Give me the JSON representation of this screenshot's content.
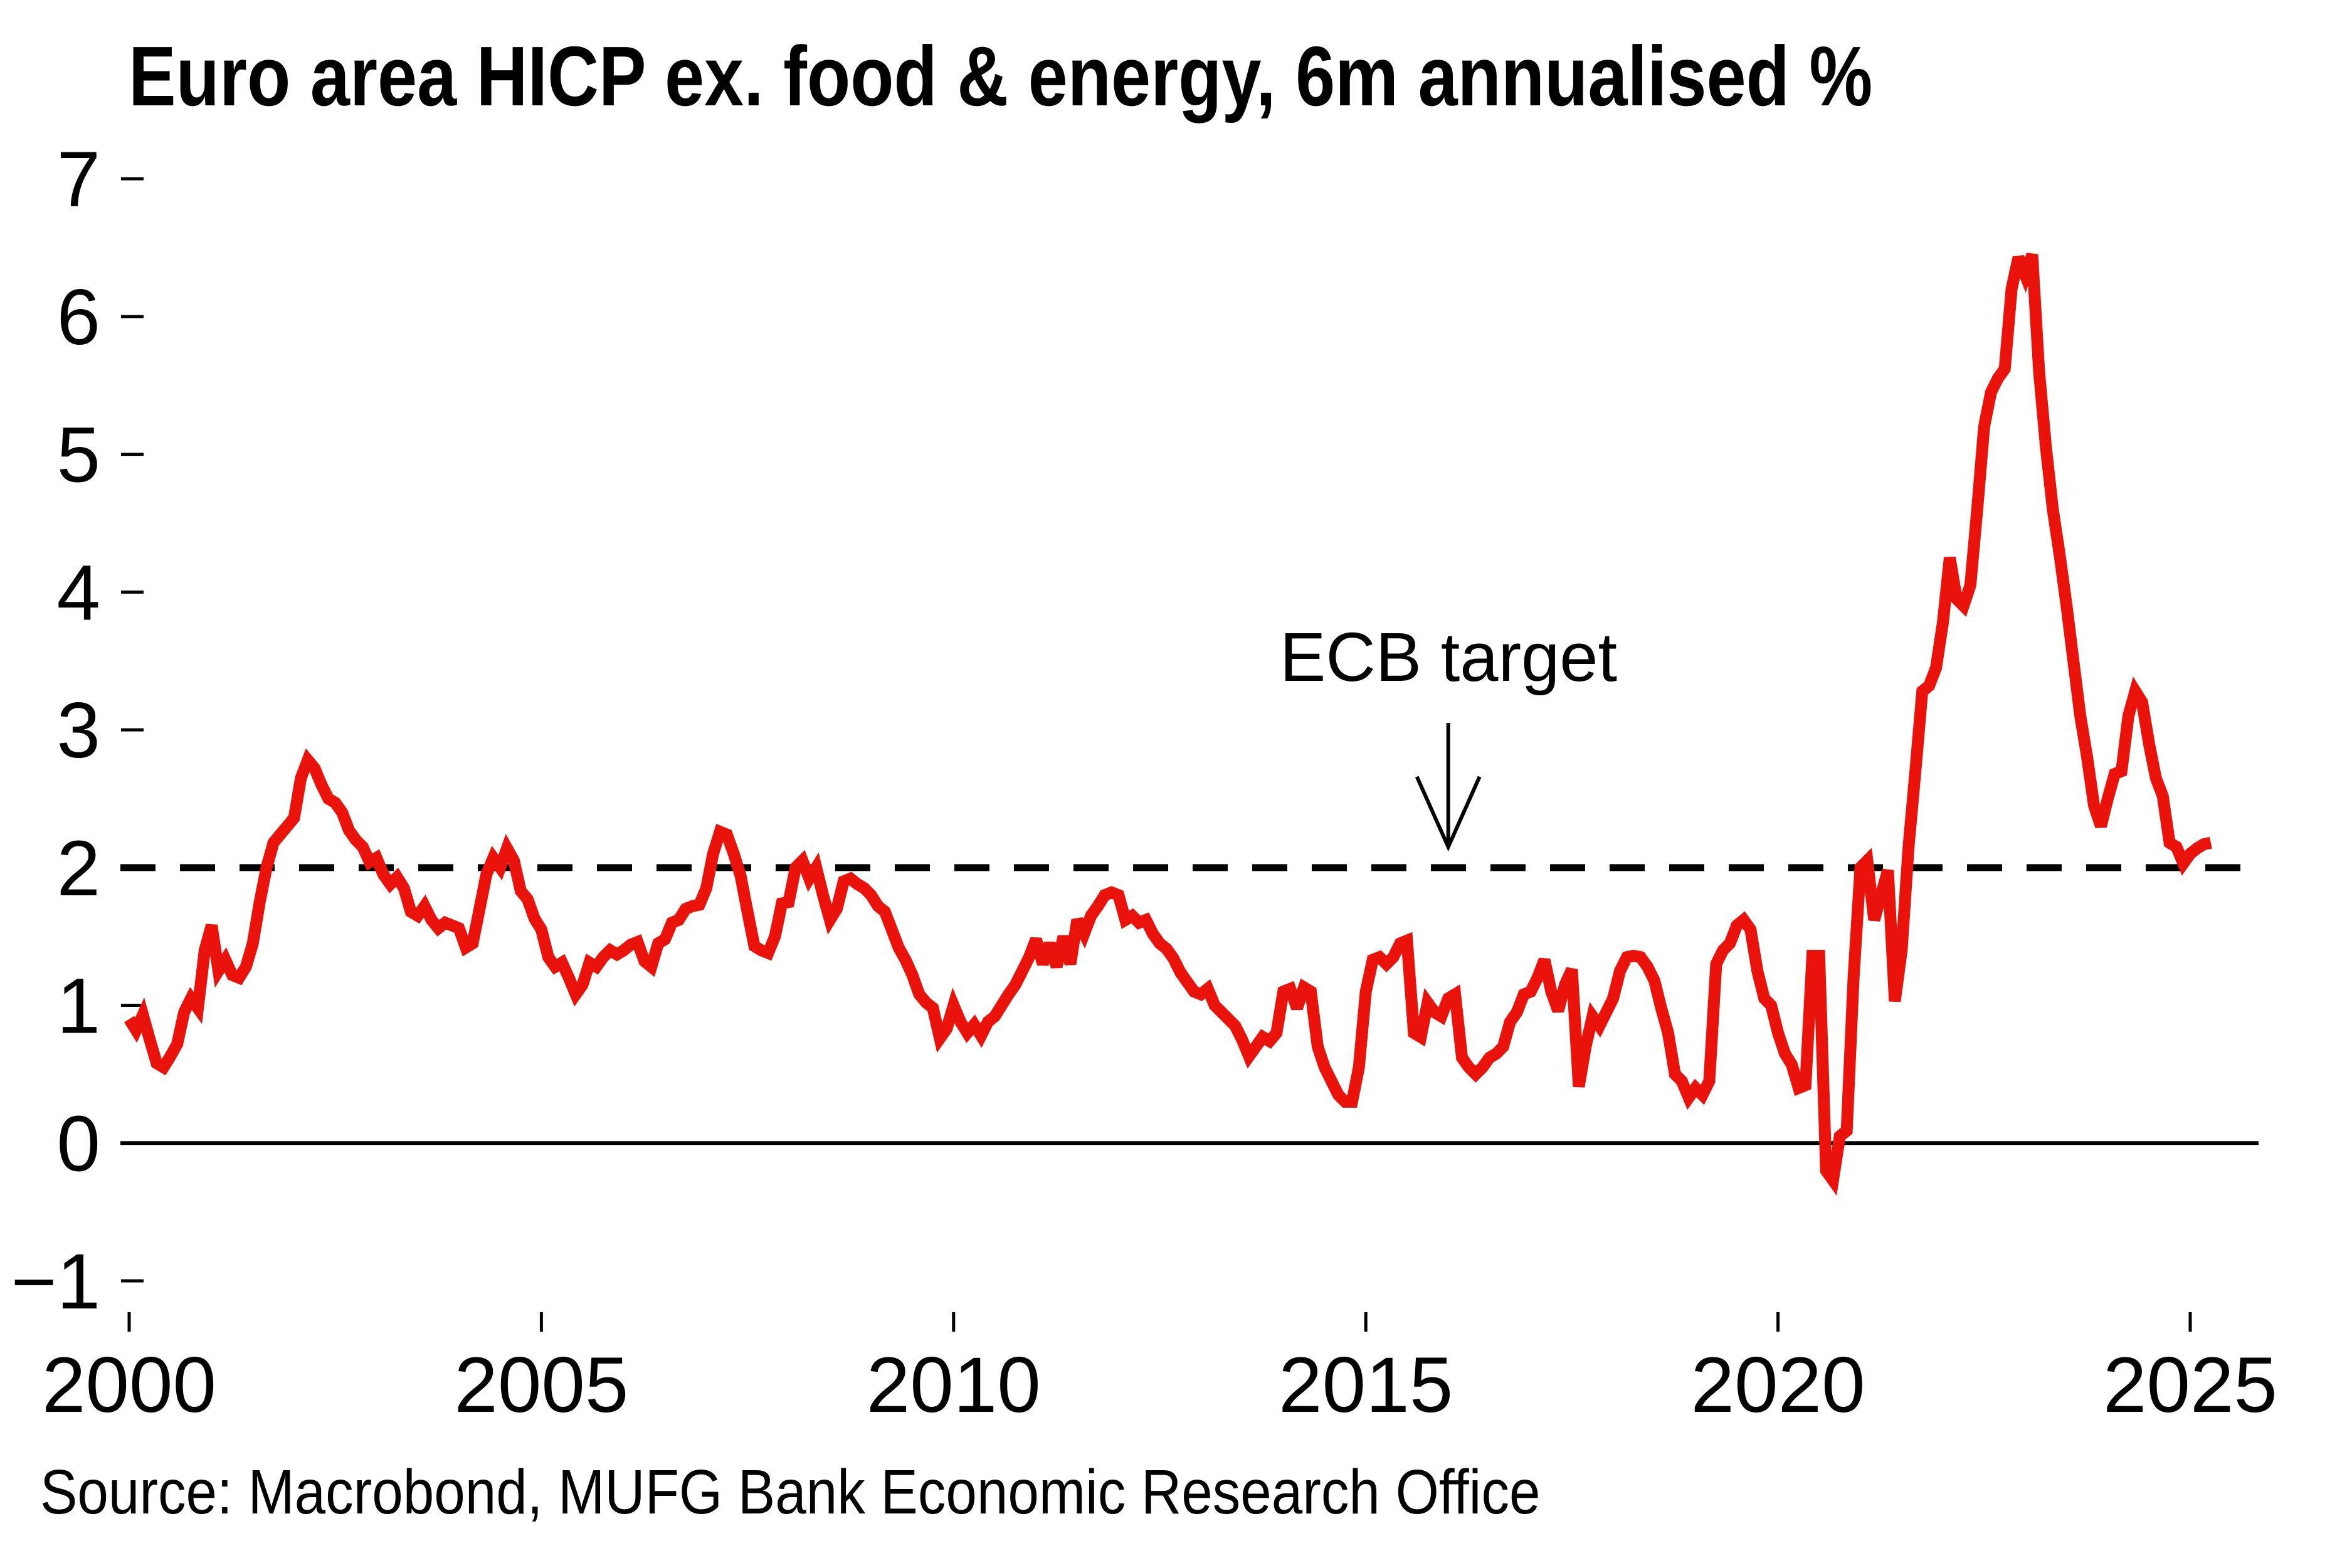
{
  "chart_data": {
    "type": "line",
    "title": "Euro area HICP ex. food & energy, 6m annualised %",
    "source": "Source: Macrobond, MUFG Bank Economic Research Office",
    "xlabel": "",
    "ylabel": "",
    "ylim": [
      -1,
      7
    ],
    "xlim": [
      2000,
      2025.9
    ],
    "grid": false,
    "legend_position": "none",
    "y_ticks": [
      "7",
      "6",
      "5",
      "4",
      "3",
      "2",
      "1",
      "0",
      "−1"
    ],
    "y_tick_values": [
      7,
      6,
      5,
      4,
      3,
      2,
      1,
      0,
      -1
    ],
    "x_ticks": [
      "2000",
      "2005",
      "2010",
      "2015",
      "2020",
      "2025"
    ],
    "x_tick_values": [
      2000,
      2005,
      2010,
      2015,
      2020,
      2025
    ],
    "annotation": {
      "text": "ECB target",
      "x": 2016.0,
      "arrow_from_value": 3.05,
      "arrow_to_value": 2.15
    },
    "target_line": {
      "value": 2,
      "style": "dashed",
      "color": "#000000"
    },
    "axis_color": "#000000",
    "series": [
      {
        "name": "Euro area HICP ex. food & energy, 6m annualised %",
        "color": "#e9130b",
        "start_year": 2000,
        "points_per_year": 12,
        "values": [
          0.9,
          0.82,
          0.93,
          0.75,
          0.58,
          0.55,
          0.63,
          0.72,
          0.95,
          1.05,
          0.98,
          1.4,
          1.58,
          1.25,
          1.33,
          1.22,
          1.2,
          1.28,
          1.45,
          1.75,
          2.0,
          2.18,
          2.24,
          2.3,
          2.36,
          2.65,
          2.78,
          2.72,
          2.6,
          2.5,
          2.47,
          2.4,
          2.27,
          2.2,
          2.15,
          2.04,
          2.07,
          1.95,
          1.88,
          1.93,
          1.85,
          1.68,
          1.65,
          1.72,
          1.62,
          1.56,
          1.6,
          1.58,
          1.56,
          1.42,
          1.45,
          1.7,
          1.95,
          2.07,
          2.0,
          2.14,
          2.05,
          1.83,
          1.77,
          1.63,
          1.55,
          1.35,
          1.28,
          1.31,
          1.2,
          1.08,
          1.15,
          1.31,
          1.28,
          1.35,
          1.4,
          1.37,
          1.4,
          1.44,
          1.46,
          1.32,
          1.28,
          1.45,
          1.48,
          1.6,
          1.62,
          1.7,
          1.72,
          1.73,
          1.85,
          2.1,
          2.26,
          2.24,
          2.1,
          1.94,
          1.68,
          1.43,
          1.4,
          1.38,
          1.5,
          1.74,
          1.75,
          2.0,
          2.05,
          1.92,
          2.0,
          1.8,
          1.62,
          1.7,
          1.9,
          1.92,
          1.88,
          1.85,
          1.8,
          1.72,
          1.68,
          1.55,
          1.42,
          1.33,
          1.22,
          1.08,
          1.02,
          0.98,
          0.76,
          0.83,
          1.0,
          0.88,
          0.8,
          0.86,
          0.78,
          0.88,
          0.92,
          1.0,
          1.08,
          1.15,
          1.25,
          1.35,
          1.48,
          1.3,
          1.45,
          1.28,
          1.5,
          1.3,
          1.62,
          1.52,
          1.65,
          1.72,
          1.8,
          1.82,
          1.8,
          1.62,
          1.65,
          1.6,
          1.62,
          1.52,
          1.45,
          1.41,
          1.34,
          1.24,
          1.17,
          1.1,
          1.08,
          1.12,
          1.0,
          0.95,
          0.9,
          0.85,
          0.75,
          0.63,
          0.7,
          0.77,
          0.74,
          0.8,
          1.1,
          1.12,
          0.98,
          1.13,
          1.1,
          0.7,
          0.55,
          0.45,
          0.35,
          0.3,
          0.3,
          0.55,
          1.1,
          1.33,
          1.35,
          1.3,
          1.35,
          1.45,
          1.47,
          0.8,
          0.77,
          1.02,
          0.95,
          0.92,
          1.05,
          1.08,
          0.62,
          0.55,
          0.5,
          0.55,
          0.62,
          0.65,
          0.7,
          0.88,
          0.95,
          1.08,
          1.1,
          1.2,
          1.33,
          1.1,
          0.96,
          1.15,
          1.26,
          0.41,
          0.7,
          0.92,
          0.85,
          0.95,
          1.05,
          1.25,
          1.35,
          1.36,
          1.35,
          1.28,
          1.18,
          0.98,
          0.8,
          0.5,
          0.45,
          0.33,
          0.4,
          0.35,
          0.45,
          1.3,
          1.4,
          1.45,
          1.58,
          1.62,
          1.55,
          1.25,
          1.05,
          1.0,
          0.8,
          0.65,
          0.57,
          0.4,
          0.42,
          1.36,
          1.36,
          -0.2,
          -0.27,
          0.05,
          0.09,
          1.2,
          2.0,
          2.05,
          1.62,
          1.8,
          1.98,
          1.03,
          1.4,
          2.15,
          2.7,
          3.28,
          3.32,
          3.45,
          3.78,
          4.25,
          3.95,
          3.9,
          4.05,
          4.6,
          5.2,
          5.45,
          5.55,
          5.62,
          6.2,
          6.43,
          6.3,
          6.45,
          5.6,
          5.05,
          4.6,
          4.27,
          3.9,
          3.5,
          3.1,
          2.8,
          2.45,
          2.3,
          2.5,
          2.68,
          2.7,
          3.1,
          3.28,
          3.2,
          2.9,
          2.65,
          2.52,
          2.18,
          2.15,
          2.03,
          2.1,
          2.14,
          2.17,
          2.18
        ]
      }
    ]
  }
}
